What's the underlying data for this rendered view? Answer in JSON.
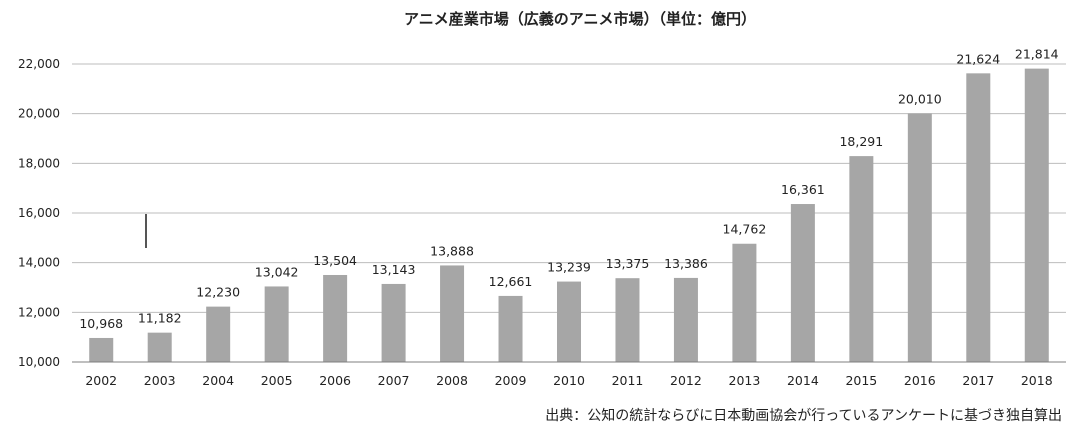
{
  "chart_data": {
    "type": "bar",
    "title": "アニメ産業市場（広義のアニメ市場）（単位：億円）",
    "categories": [
      "2002",
      "2003",
      "2004",
      "2005",
      "2006",
      "2007",
      "2008",
      "2009",
      "2010",
      "2011",
      "2012",
      "2013",
      "2014",
      "2015",
      "2016",
      "2017",
      "2018"
    ],
    "values": [
      10968,
      11182,
      12230,
      13042,
      13504,
      13143,
      13888,
      12661,
      13239,
      13375,
      13386,
      14762,
      16361,
      18291,
      20010,
      21624,
      21814
    ],
    "value_labels": [
      "10,968",
      "11,182",
      "12,230",
      "13,042",
      "13,504",
      "13,143",
      "13,888",
      "12,661",
      "13,239",
      "13,375",
      "13,386",
      "14,762",
      "16,361",
      "18,291",
      "20,010",
      "21,624",
      "21,814"
    ],
    "ylim": [
      10000,
      22000
    ],
    "yticks": [
      10000,
      12000,
      14000,
      16000,
      18000,
      20000,
      22000
    ],
    "ytick_labels": [
      "10,000",
      "12,000",
      "14,000",
      "16,000",
      "18,000",
      "20,000",
      "22,000"
    ],
    "grid": true,
    "bar_color": "#a6a6a6",
    "source": "出典：公知の統計ならびに日本動画協会が行っているアンケートに基づき独自算出"
  }
}
